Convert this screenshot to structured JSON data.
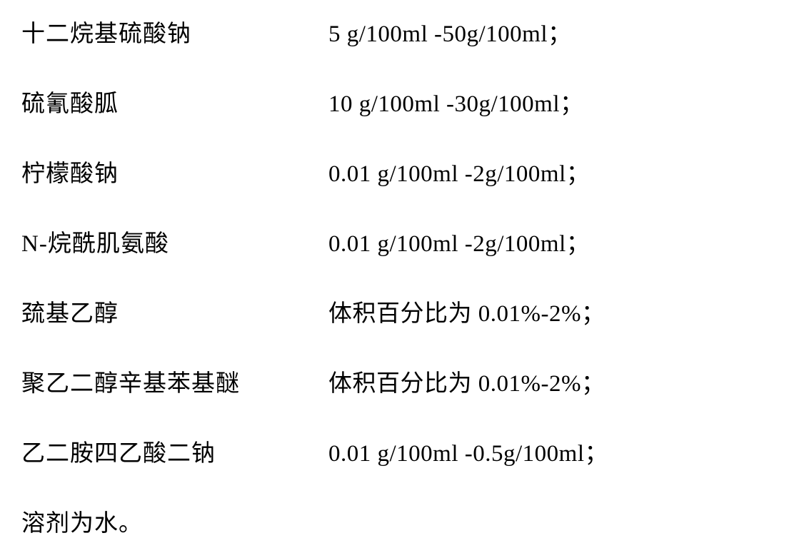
{
  "rows": [
    {
      "name": "十二烷基硫酸钠",
      "value": "5 g/100ml -50g/100ml；"
    },
    {
      "name": "硫氰酸胍",
      "value": "10 g/100ml -30g/100ml；"
    },
    {
      "name": "柠檬酸钠",
      "value": "0.01 g/100ml -2g/100ml；"
    },
    {
      "name": "N-烷酰肌氨酸",
      "value": "0.01 g/100ml -2g/100ml；"
    },
    {
      "name": "巯基乙醇",
      "value": "体积百分比为 0.01%-2%；"
    },
    {
      "name": "聚乙二醇辛基苯基醚",
      "value": "体积百分比为 0.01%-2%；"
    },
    {
      "name": "乙二胺四乙酸二钠",
      "value": "0.01 g/100ml -0.5g/100ml；"
    }
  ],
  "footer": "溶剂为水。",
  "typography": {
    "font_family": "SimSun",
    "font_size": 33,
    "color": "#000000",
    "background_color": "#ffffff"
  },
  "layout": {
    "name_column_width": 430,
    "row_gap": 50
  }
}
